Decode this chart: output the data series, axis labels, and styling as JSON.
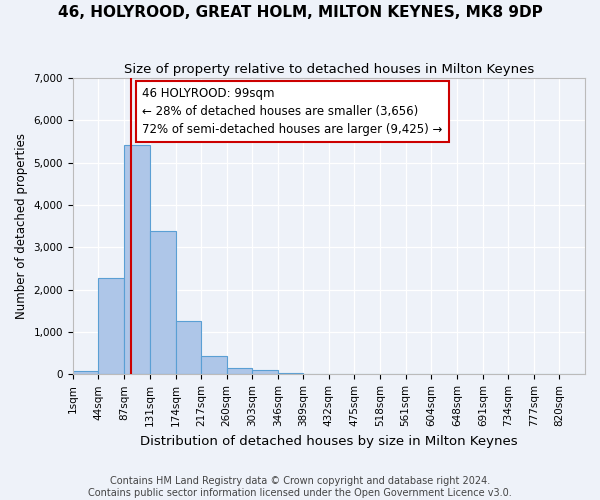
{
  "title": "46, HOLYROOD, GREAT HOLM, MILTON KEYNES, MK8 9DP",
  "subtitle": "Size of property relative to detached houses in Milton Keynes",
  "xlabel": "Distribution of detached houses by size in Milton Keynes",
  "ylabel": "Number of detached properties",
  "footer_line1": "Contains HM Land Registry data © Crown copyright and database right 2024.",
  "footer_line2": "Contains public sector information licensed under the Open Government Licence v3.0.",
  "annotation_line1": "46 HOLYROOD: 99sqm",
  "annotation_line2": "← 28% of detached houses are smaller (3,656)",
  "annotation_line3": "72% of semi-detached houses are larger (9,425) →",
  "bar_edges": [
    1,
    44,
    87,
    131,
    174,
    217,
    260,
    303,
    346,
    389,
    432,
    475,
    518,
    561,
    604,
    648,
    691,
    734,
    777,
    820,
    863
  ],
  "bar_heights": [
    90,
    2270,
    5420,
    3380,
    1270,
    430,
    160,
    100,
    30,
    0,
    0,
    0,
    0,
    0,
    0,
    0,
    0,
    0,
    0,
    0
  ],
  "bar_color": "#aec6e8",
  "bar_edge_color": "#5a9fd4",
  "property_line_x": 99,
  "property_line_color": "#cc0000",
  "annotation_edge_color": "#cc0000",
  "background_color": "#eef2f9",
  "grid_color": "#ffffff",
  "ylim": [
    0,
    7000
  ],
  "yticks": [
    0,
    1000,
    2000,
    3000,
    4000,
    5000,
    6000,
    7000
  ],
  "title_fontsize": 11,
  "subtitle_fontsize": 9.5,
  "xlabel_fontsize": 9.5,
  "ylabel_fontsize": 8.5,
  "tick_fontsize": 7.5,
  "annotation_fontsize": 8.5,
  "footer_fontsize": 7
}
